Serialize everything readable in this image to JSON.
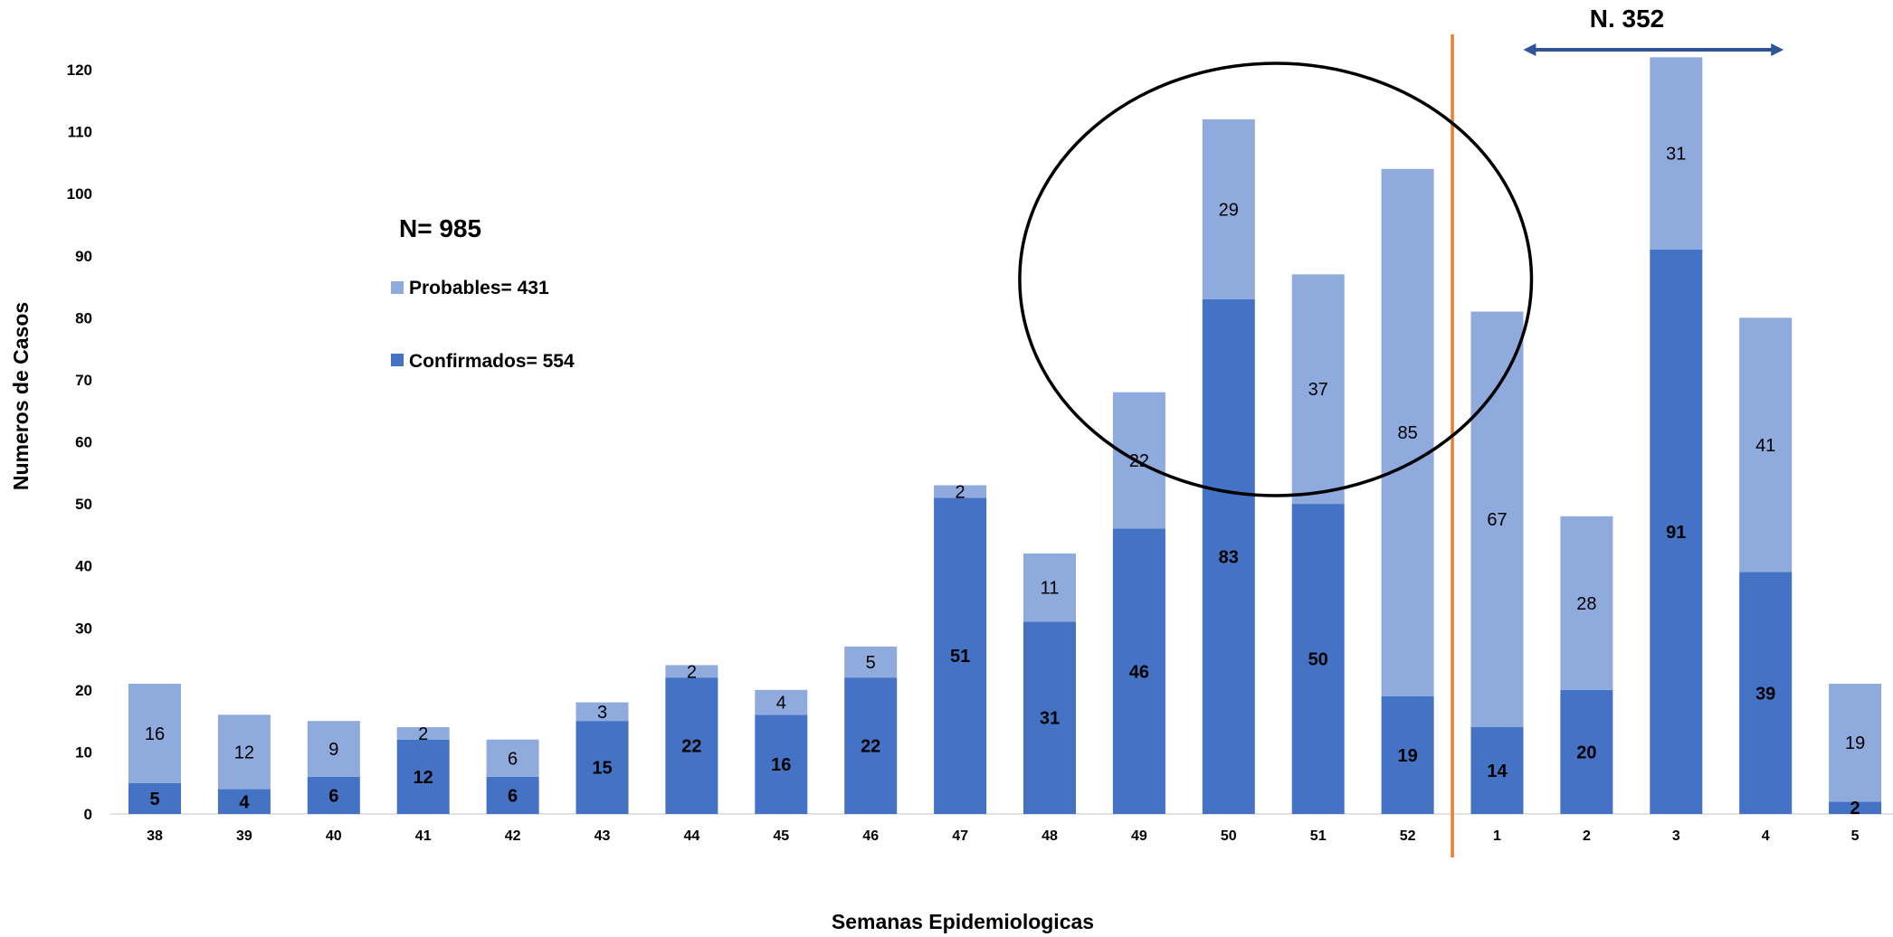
{
  "chart_data": {
    "type": "bar",
    "stacked": true,
    "xlabel": "Semanas Epidemiologicas",
    "ylabel": "Numeros de Casos",
    "ylim": [
      0,
      120
    ],
    "yticks": [
      0,
      10,
      20,
      30,
      40,
      50,
      60,
      70,
      80,
      90,
      100,
      110,
      120
    ],
    "categories": [
      "38",
      "39",
      "40",
      "41",
      "42",
      "43",
      "44",
      "45",
      "46",
      "47",
      "48",
      "49",
      "50",
      "51",
      "52",
      "1",
      "2",
      "3",
      "4",
      "5"
    ],
    "series": [
      {
        "name": "Confirmados",
        "color": "#4472C4",
        "values": [
          5,
          4,
          6,
          12,
          6,
          15,
          22,
          16,
          22,
          51,
          31,
          46,
          83,
          50,
          19,
          14,
          20,
          91,
          39,
          2
        ]
      },
      {
        "name": "Probables",
        "color": "#8FAADC",
        "values": [
          16,
          12,
          9,
          2,
          6,
          3,
          2,
          4,
          5,
          2,
          11,
          22,
          29,
          37,
          85,
          67,
          28,
          31,
          41,
          19
        ]
      }
    ],
    "grid": false,
    "legend": {
      "position": "upper-left",
      "title": "N= 985",
      "entries": [
        {
          "series": "Probables",
          "text": "Probables= 431"
        },
        {
          "series": "Confirmados",
          "text": "Confirmados= 554"
        }
      ]
    },
    "annotations": {
      "right_label": "N. 352",
      "separator_line": {
        "after_category": "52",
        "color": "#ED7D31"
      },
      "arrow": {
        "from_category": "2",
        "to_category": "4",
        "color": "#2F5597"
      },
      "ellipse": {
        "around_categories": [
          "49",
          "50",
          "51",
          "52",
          "1"
        ],
        "color": "#000000"
      }
    }
  }
}
